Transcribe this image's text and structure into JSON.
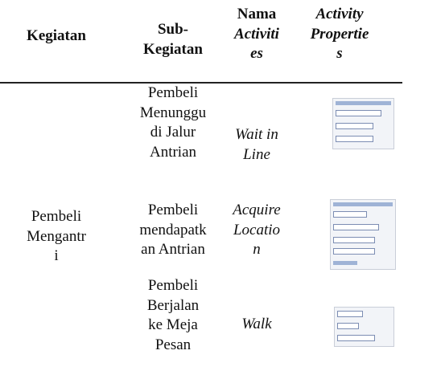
{
  "header": [
    [
      "Kegiatan"
    ],
    [
      "Sub-",
      "Kegiatan"
    ],
    [
      "Nama",
      "Activiti",
      "es"
    ],
    [
      "Activity",
      "Propertie",
      "s"
    ]
  ],
  "rows": [
    {
      "kegiatan": [
        "Pembeli",
        "Mengantr",
        "i"
      ],
      "sub_kegiatan": [
        "Pembeli",
        "Menunggu",
        "di Jalur",
        "Antrian"
      ],
      "activity": [
        "Wait in",
        "Line"
      ]
    },
    {
      "sub_kegiatan": [
        "Pembeli",
        "mendapatk",
        "an Antrian"
      ],
      "activity": [
        "Acquire",
        "Locatio",
        "n"
      ]
    },
    {
      "sub_kegiatan": [
        "Pembeli",
        "Berjalan",
        "ke Meja",
        "Pesan"
      ],
      "activity": [
        "Walk"
      ]
    }
  ]
}
